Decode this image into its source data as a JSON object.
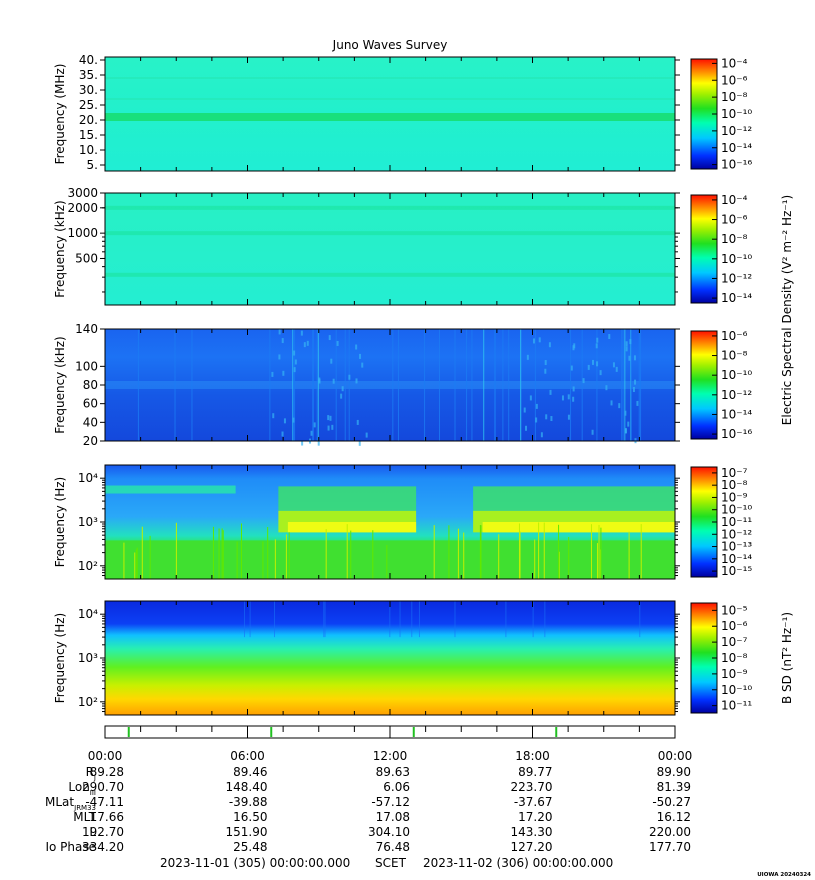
{
  "title": "Juno Waves Survey",
  "footer": {
    "start": "2023-11-01 (305) 00:00:00.000",
    "scet": "SCET",
    "end": "2023-11-02 (306) 00:00:00.000",
    "stamp": "UIOWA 20240324"
  },
  "shared_colorbar_label": "Electric Spectral Density (V² m⁻² Hz⁻¹)",
  "chart_data": [
    {
      "type": "heatmap",
      "panel": "MHz",
      "ylabel": "Frequency (MHz)",
      "yscale": "linear",
      "ylim": [
        3,
        41
      ],
      "yticks": [
        "5.",
        "10.",
        "15.",
        "20.",
        "25.",
        "30.",
        "35.",
        "40."
      ],
      "ytick_values": [
        5,
        10,
        15,
        20,
        25,
        30,
        35,
        40
      ],
      "colorbar": {
        "ticks": [
          "10⁻⁴",
          "10⁻⁶",
          "10⁻⁸",
          "10⁻¹⁰",
          "10⁻¹²",
          "10⁻¹⁴",
          "10⁻¹⁶"
        ],
        "exponents": [
          -4,
          -6,
          -8,
          -10,
          -12,
          -14,
          -16
        ]
      },
      "features": "uniform cyan background (~1e-13) with horizontal band near 21 MHz (~1e-12)"
    },
    {
      "type": "heatmap",
      "panel": "kHz_high",
      "ylabel": "Frequency (kHz)",
      "yscale": "log",
      "ylim": [
        140,
        3000
      ],
      "yticks": [
        "3000",
        "2000",
        "1000",
        "500"
      ],
      "ytick_values": [
        3000,
        2000,
        1000,
        500
      ],
      "colorbar": {
        "ticks": [
          "10⁻⁴",
          "10⁻⁶",
          "10⁻⁸",
          "10⁻¹⁰",
          "10⁻¹²",
          "10⁻¹⁴"
        ],
        "exponents": [
          -4,
          -6,
          -8,
          -10,
          -12,
          -14
        ]
      },
      "features": "uniform cyan background with faint horizontal bands near 2000 and 1000 kHz"
    },
    {
      "type": "heatmap",
      "panel": "kHz_low",
      "ylabel": "Frequency (kHz)",
      "yscale": "linear",
      "ylim": [
        20,
        140
      ],
      "yticks": [
        "140",
        "100",
        "80",
        "60",
        "40",
        "20"
      ],
      "ytick_values": [
        140,
        100,
        80,
        60,
        40,
        20
      ],
      "colorbar": {
        "ticks": [
          "10⁻⁶",
          "10⁻⁸",
          "10⁻¹⁰",
          "10⁻¹²",
          "10⁻¹⁴",
          "10⁻¹⁶"
        ],
        "exponents": [
          -6,
          -8,
          -10,
          -12,
          -14,
          -16
        ]
      },
      "features": "blue background (~1e-14) with sporadic vertical bursts"
    },
    {
      "type": "heatmap",
      "panel": "Hz_E",
      "ylabel": "Frequency (Hz)",
      "yscale": "log",
      "ylim": [
        50,
        20000
      ],
      "yticks": [
        "10⁴",
        "10³",
        "10²"
      ],
      "ytick_values": [
        10000,
        1000,
        100
      ],
      "colorbar": {
        "ticks": [
          "10⁻⁷",
          "10⁻⁸",
          "10⁻⁹",
          "10⁻¹⁰",
          "10⁻¹¹",
          "10⁻¹²",
          "10⁻¹³",
          "10⁻¹⁴",
          "10⁻¹⁵"
        ],
        "exponents": [
          -7,
          -8,
          -9,
          -10,
          -11,
          -12,
          -13,
          -14,
          -15
        ]
      },
      "features": "green low-frequency emission below ~300 Hz; intense (yellow) band 600-1000 Hz from ~07:00-13:00 and ~15:30-24:00"
    },
    {
      "type": "heatmap",
      "panel": "Hz_B",
      "ylabel": "Frequency (Hz)",
      "yscale": "log",
      "ylim": [
        50,
        20000
      ],
      "yticks": [
        "10⁴",
        "10³",
        "10²"
      ],
      "ytick_values": [
        10000,
        1000,
        100
      ],
      "colorbar": {
        "label": "B SD (nT² Hz⁻¹)",
        "ticks": [
          "10⁻⁵",
          "10⁻⁶",
          "10⁻⁷",
          "10⁻⁸",
          "10⁻⁹",
          "10⁻¹⁰",
          "10⁻¹¹"
        ],
        "exponents": [
          -5,
          -6,
          -7,
          -8,
          -9,
          -10,
          -11
        ]
      },
      "features": "smooth gradient from orange at 50 Hz to blue above ~5 kHz"
    }
  ],
  "xaxis": {
    "ticks": [
      "00:00",
      "06:00",
      "12:00",
      "18:00",
      "00:00"
    ],
    "tick_hours": [
      0,
      6,
      12,
      18,
      24
    ],
    "range_hours": [
      0,
      24
    ]
  },
  "ephemeris": {
    "rows": [
      {
        "label": "R",
        "sub": "J",
        "values": [
          "89.28",
          "89.46",
          "89.63",
          "89.77",
          "89.90"
        ]
      },
      {
        "label": "Lon",
        "sub": "III",
        "values": [
          "290.70",
          "148.40",
          "6.06",
          "223.70",
          "81.39"
        ]
      },
      {
        "label": "MLat",
        "sub": "JRM33",
        "values": [
          "-47.11",
          "-39.88",
          "-57.12",
          "-37.67",
          "-50.27"
        ]
      },
      {
        "label": "MLT",
        "sub": "",
        "values": [
          "17.66",
          "16.50",
          "17.08",
          "17.20",
          "16.12"
        ]
      },
      {
        "label": "L",
        "sub": "",
        "values": [
          "192.70",
          "151.90",
          "304.10",
          "143.30",
          "220.00"
        ]
      },
      {
        "label": "Io Phase",
        "sub": "",
        "values": [
          "334.20",
          "25.48",
          "76.48",
          "127.20",
          "177.70"
        ]
      }
    ]
  }
}
